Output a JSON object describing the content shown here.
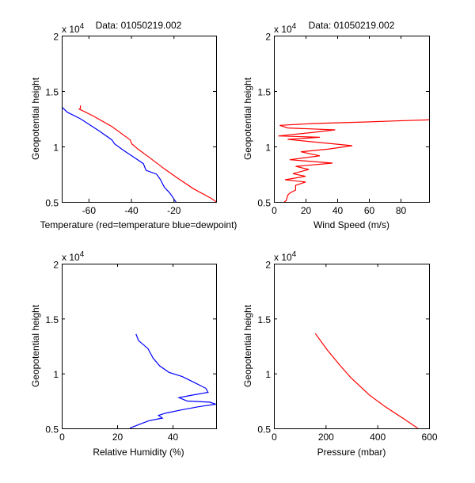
{
  "figure": {
    "background": "#ffffff"
  },
  "chart_data": [
    {
      "type": "line",
      "title": "Data: 01050219.002",
      "xlabel": "Temperature (red=temperature blue=dewpoint)",
      "ylabel": "Geopotential height",
      "y_multiplier_label": "x 10",
      "y_multiplier_exp": "4",
      "xlim": [
        -72.6,
        0
      ],
      "ylim": [
        5000,
        20000
      ],
      "xticks": [
        -60,
        -40,
        -20
      ],
      "xtick_labels": [
        "-60",
        "-40",
        "-20"
      ],
      "yticks": [
        5000,
        10000,
        15000,
        20000
      ],
      "ytick_labels": [
        "0.5",
        "1",
        "1.5",
        "2"
      ],
      "grid": false,
      "series": [
        {
          "name": "temperature",
          "color": "#ff0000",
          "points": [
            [
              -63.8,
              13690
            ],
            [
              -63.8,
              13450
            ],
            [
              -64.4,
              13380
            ],
            [
              -57.7,
              12740
            ],
            [
              -49,
              11790
            ],
            [
              -40.4,
              10590
            ],
            [
              -39.7,
              10240
            ],
            [
              -36.7,
              9760
            ],
            [
              -31.7,
              9050
            ],
            [
              -24.3,
              7980
            ],
            [
              -18.1,
              7140
            ],
            [
              -10.7,
              6190
            ],
            [
              -2.1,
              5290
            ],
            [
              -0.8,
              5120
            ],
            [
              0,
              5000
            ]
          ]
        },
        {
          "name": "dewpoint",
          "color": "#0000ff",
          "points": [
            [
              -72.6,
              13570
            ],
            [
              -70,
              13090
            ],
            [
              -63.8,
              12500
            ],
            [
              -55.2,
              11430
            ],
            [
              -49,
              10590
            ],
            [
              -47.8,
              10240
            ],
            [
              -43.5,
              9640
            ],
            [
              -37.9,
              8930
            ],
            [
              -34.2,
              8450
            ],
            [
              -33,
              7860
            ],
            [
              -28,
              7500
            ],
            [
              -26.2,
              7020
            ],
            [
              -24.3,
              6310
            ],
            [
              -21.9,
              5830
            ],
            [
              -20.6,
              5480
            ],
            [
              -19.4,
              5120
            ],
            [
              -18.8,
              5000
            ]
          ]
        }
      ]
    },
    {
      "type": "line",
      "title": "Data: 01050219.002",
      "xlabel": "Wind Speed (m/s)",
      "ylabel": "Geopotential height",
      "y_multiplier_label": "x 10",
      "y_multiplier_exp": "4",
      "xlim": [
        0,
        98
      ],
      "ylim": [
        5000,
        20000
      ],
      "xticks": [
        0,
        20,
        40,
        60,
        80
      ],
      "xtick_labels": [
        "0",
        "20",
        "40",
        "60",
        "80"
      ],
      "yticks": [
        5000,
        10000,
        15000,
        20000
      ],
      "ytick_labels": [
        "0.5",
        "1",
        "1.5",
        "2"
      ],
      "grid": false,
      "series": [
        {
          "name": "wind speed",
          "color": "#ff0000",
          "points": [
            [
              6.5,
              5000
            ],
            [
              7.8,
              5120
            ],
            [
              8.7,
              5590
            ],
            [
              10,
              5800
            ],
            [
              13.7,
              6070
            ],
            [
              13.7,
              6500
            ],
            [
              20,
              6790
            ],
            [
              7,
              7000
            ],
            [
              20,
              7310
            ],
            [
              12,
              7550
            ],
            [
              22,
              7930
            ],
            [
              13.7,
              8210
            ],
            [
              37,
              8500
            ],
            [
              10,
              8810
            ],
            [
              29,
              9160
            ],
            [
              17,
              9520
            ],
            [
              34,
              9760
            ],
            [
              49.5,
              10070
            ],
            [
              29,
              10360
            ],
            [
              8.7,
              10640
            ],
            [
              29,
              10830
            ],
            [
              2.8,
              10950
            ],
            [
              24,
              11260
            ],
            [
              38.7,
              11500
            ],
            [
              8.7,
              11670
            ],
            [
              3.7,
              11910
            ],
            [
              25,
              12070
            ],
            [
              57,
              12210
            ],
            [
              75,
              12300
            ],
            [
              98,
              12400
            ]
          ]
        }
      ]
    },
    {
      "type": "line",
      "title": "",
      "xlabel": "Relative Humidity (%)",
      "ylabel": "Geopotential height",
      "y_multiplier_label": "x 10",
      "y_multiplier_exp": "4",
      "xlim": [
        0,
        55.7
      ],
      "ylim": [
        5000,
        20000
      ],
      "xticks": [
        0,
        20,
        40
      ],
      "xtick_labels": [
        "0",
        "20",
        "40"
      ],
      "yticks": [
        5000,
        10000,
        15000,
        20000
      ],
      "ytick_labels": [
        "0.5",
        "1",
        "1.5",
        "2"
      ],
      "grid": false,
      "series": [
        {
          "name": "relative humidity",
          "color": "#0000ff",
          "points": [
            [
              26.8,
              13590
            ],
            [
              27.7,
              12990
            ],
            [
              31.1,
              12270
            ],
            [
              32.9,
              11420
            ],
            [
              35.3,
              10700
            ],
            [
              38.7,
              10100
            ],
            [
              43.4,
              9730
            ],
            [
              48.2,
              9130
            ],
            [
              52,
              8650
            ],
            [
              52.8,
              8280
            ],
            [
              46.3,
              7990
            ],
            [
              42.3,
              7800
            ],
            [
              45.3,
              7490
            ],
            [
              53.4,
              7390
            ],
            [
              55.6,
              7200
            ],
            [
              49.1,
              6960
            ],
            [
              43,
              6670
            ],
            [
              37.7,
              6400
            ],
            [
              34.9,
              6180
            ],
            [
              36.3,
              5940
            ],
            [
              31.5,
              5700
            ],
            [
              28.2,
              5380
            ],
            [
              24.6,
              5020
            ]
          ]
        }
      ]
    },
    {
      "type": "line",
      "title": "",
      "xlabel": "Pressure (mbar)",
      "ylabel": "Geopotential height",
      "y_multiplier_label": "x 10",
      "y_multiplier_exp": "4",
      "xlim": [
        0,
        600
      ],
      "ylim": [
        5000,
        20000
      ],
      "xticks": [
        0,
        200,
        400,
        600
      ],
      "xtick_labels": [
        "0",
        "200",
        "400",
        "600"
      ],
      "yticks": [
        5000,
        10000,
        15000,
        20000
      ],
      "ytick_labels": [
        "0.5",
        "1",
        "1.5",
        "2"
      ],
      "grid": false,
      "series": [
        {
          "name": "pressure",
          "color": "#ff0000",
          "points": [
            [
              160,
              13640
            ],
            [
              206,
              12150
            ],
            [
              257,
              10700
            ],
            [
              298,
              9610
            ],
            [
              369,
              8040
            ],
            [
              431,
              6960
            ],
            [
              502,
              5870
            ],
            [
              556,
              5020
            ]
          ]
        }
      ]
    }
  ]
}
